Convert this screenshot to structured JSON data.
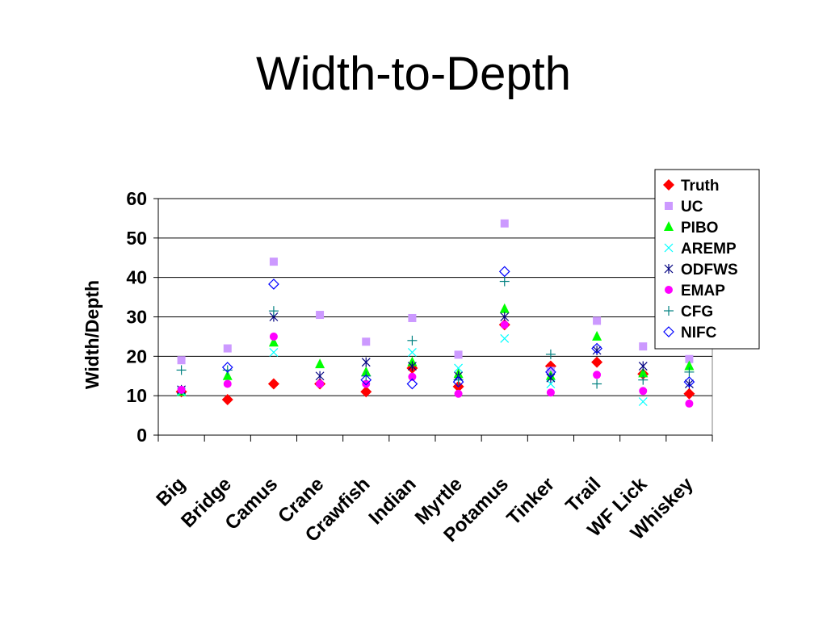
{
  "slide": {
    "title": "Width-to-Depth"
  },
  "chart_data": {
    "type": "scatter",
    "title": "Width-to-Depth",
    "xlabel": "",
    "ylabel": "Width/Depth",
    "ylim": [
      0,
      60
    ],
    "yticks": [
      0,
      10,
      20,
      30,
      40,
      50,
      60
    ],
    "grid": true,
    "legend_position": "top-right",
    "categories": [
      "Big",
      "Bridge",
      "Camus",
      "Crane",
      "Crawfish",
      "Indian",
      "Myrtle",
      "Potamus",
      "Tinker",
      "Trail",
      "WF Lick",
      "Whiskey"
    ],
    "series": [
      {
        "name": "Truth",
        "marker": "diamond-filled",
        "color": "#ff0000",
        "values": [
          11,
          9,
          13,
          13,
          11,
          17,
          12.3,
          28,
          17.5,
          18.5,
          15.5,
          10.5
        ]
      },
      {
        "name": "UC",
        "marker": "square-filled",
        "color": "#cc99ff",
        "values": [
          19,
          22,
          44,
          30.5,
          23.7,
          29.7,
          20.4,
          53.7,
          16.3,
          29,
          22.5,
          19.3
        ]
      },
      {
        "name": "PIBO",
        "marker": "triangle-filled",
        "color": "#00ff00",
        "values": [
          11,
          15,
          23.5,
          18,
          16,
          18.5,
          15.5,
          32,
          15,
          25,
          15.7,
          17.5
        ]
      },
      {
        "name": "AREMP",
        "marker": "x",
        "color": "#00ffff",
        "values": [
          11,
          null,
          21,
          null,
          null,
          21,
          17,
          24.5,
          13,
          null,
          8.5,
          null
        ]
      },
      {
        "name": "ODFWS",
        "marker": "star",
        "color": "#000080",
        "values": [
          11.5,
          null,
          30,
          15,
          18.5,
          17.5,
          15,
          30,
          14.5,
          21.5,
          17.5,
          13
        ]
      },
      {
        "name": "EMAP",
        "marker": "circle-filled",
        "color": "#ff00ff",
        "values": [
          11.5,
          13,
          25,
          13,
          13,
          14.8,
          10.5,
          28,
          10.8,
          15.3,
          11.2,
          8
        ]
      },
      {
        "name": "CFG",
        "marker": "plus",
        "color": "#008080",
        "values": [
          16.5,
          16.5,
          31.5,
          null,
          15,
          24,
          14,
          39,
          20.5,
          13,
          14,
          16
        ]
      },
      {
        "name": "NIFC",
        "marker": "diamond-open",
        "color": "#0000ff",
        "values": [
          null,
          17.2,
          38.3,
          null,
          14,
          13,
          13.5,
          41.5,
          16,
          22,
          null,
          13.5
        ]
      }
    ]
  }
}
